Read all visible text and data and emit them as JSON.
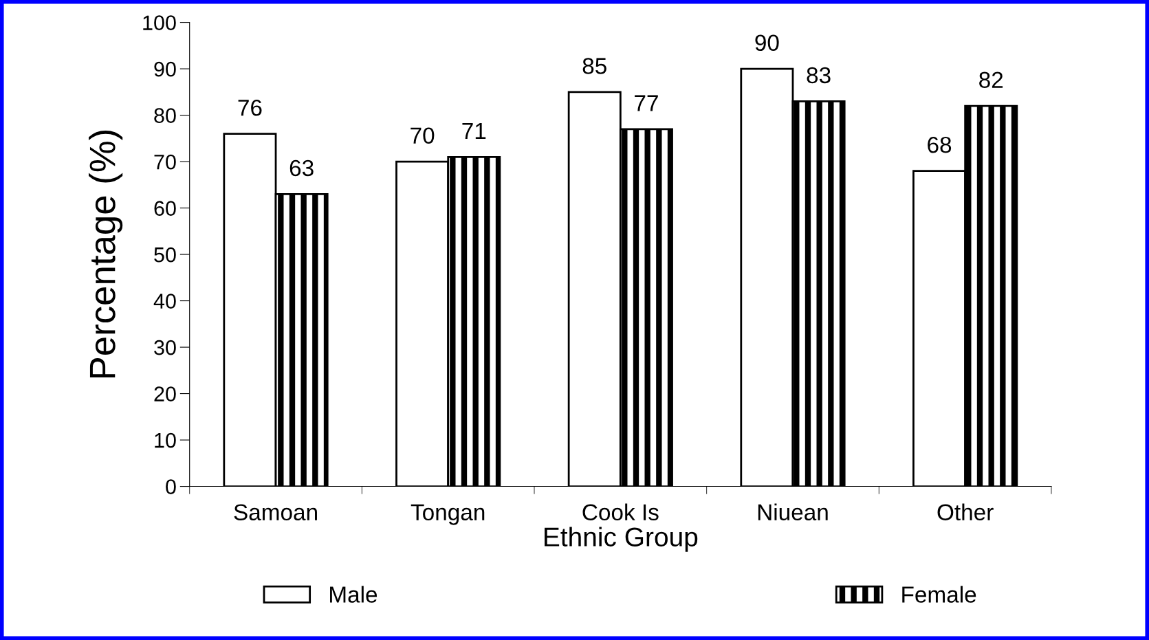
{
  "chart_data": {
    "type": "bar",
    "xlabel": "Ethnic Group",
    "ylabel": "Percentage (%)",
    "categories": [
      "Samoan",
      "Tongan",
      "Cook Is",
      "Niuean",
      "Other"
    ],
    "series": [
      {
        "name": "Male",
        "color": "#ffffff",
        "values": [
          76,
          70,
          85,
          90,
          68
        ]
      },
      {
        "name": "Female",
        "color": "#000000",
        "values": [
          63,
          71,
          77,
          83,
          82
        ]
      }
    ],
    "ylim": [
      0,
      100
    ],
    "yticks": [
      0,
      10,
      20,
      30,
      40,
      50,
      60,
      70,
      80,
      90,
      100
    ],
    "data_labels": true,
    "grid": false,
    "legend": "bottom"
  }
}
